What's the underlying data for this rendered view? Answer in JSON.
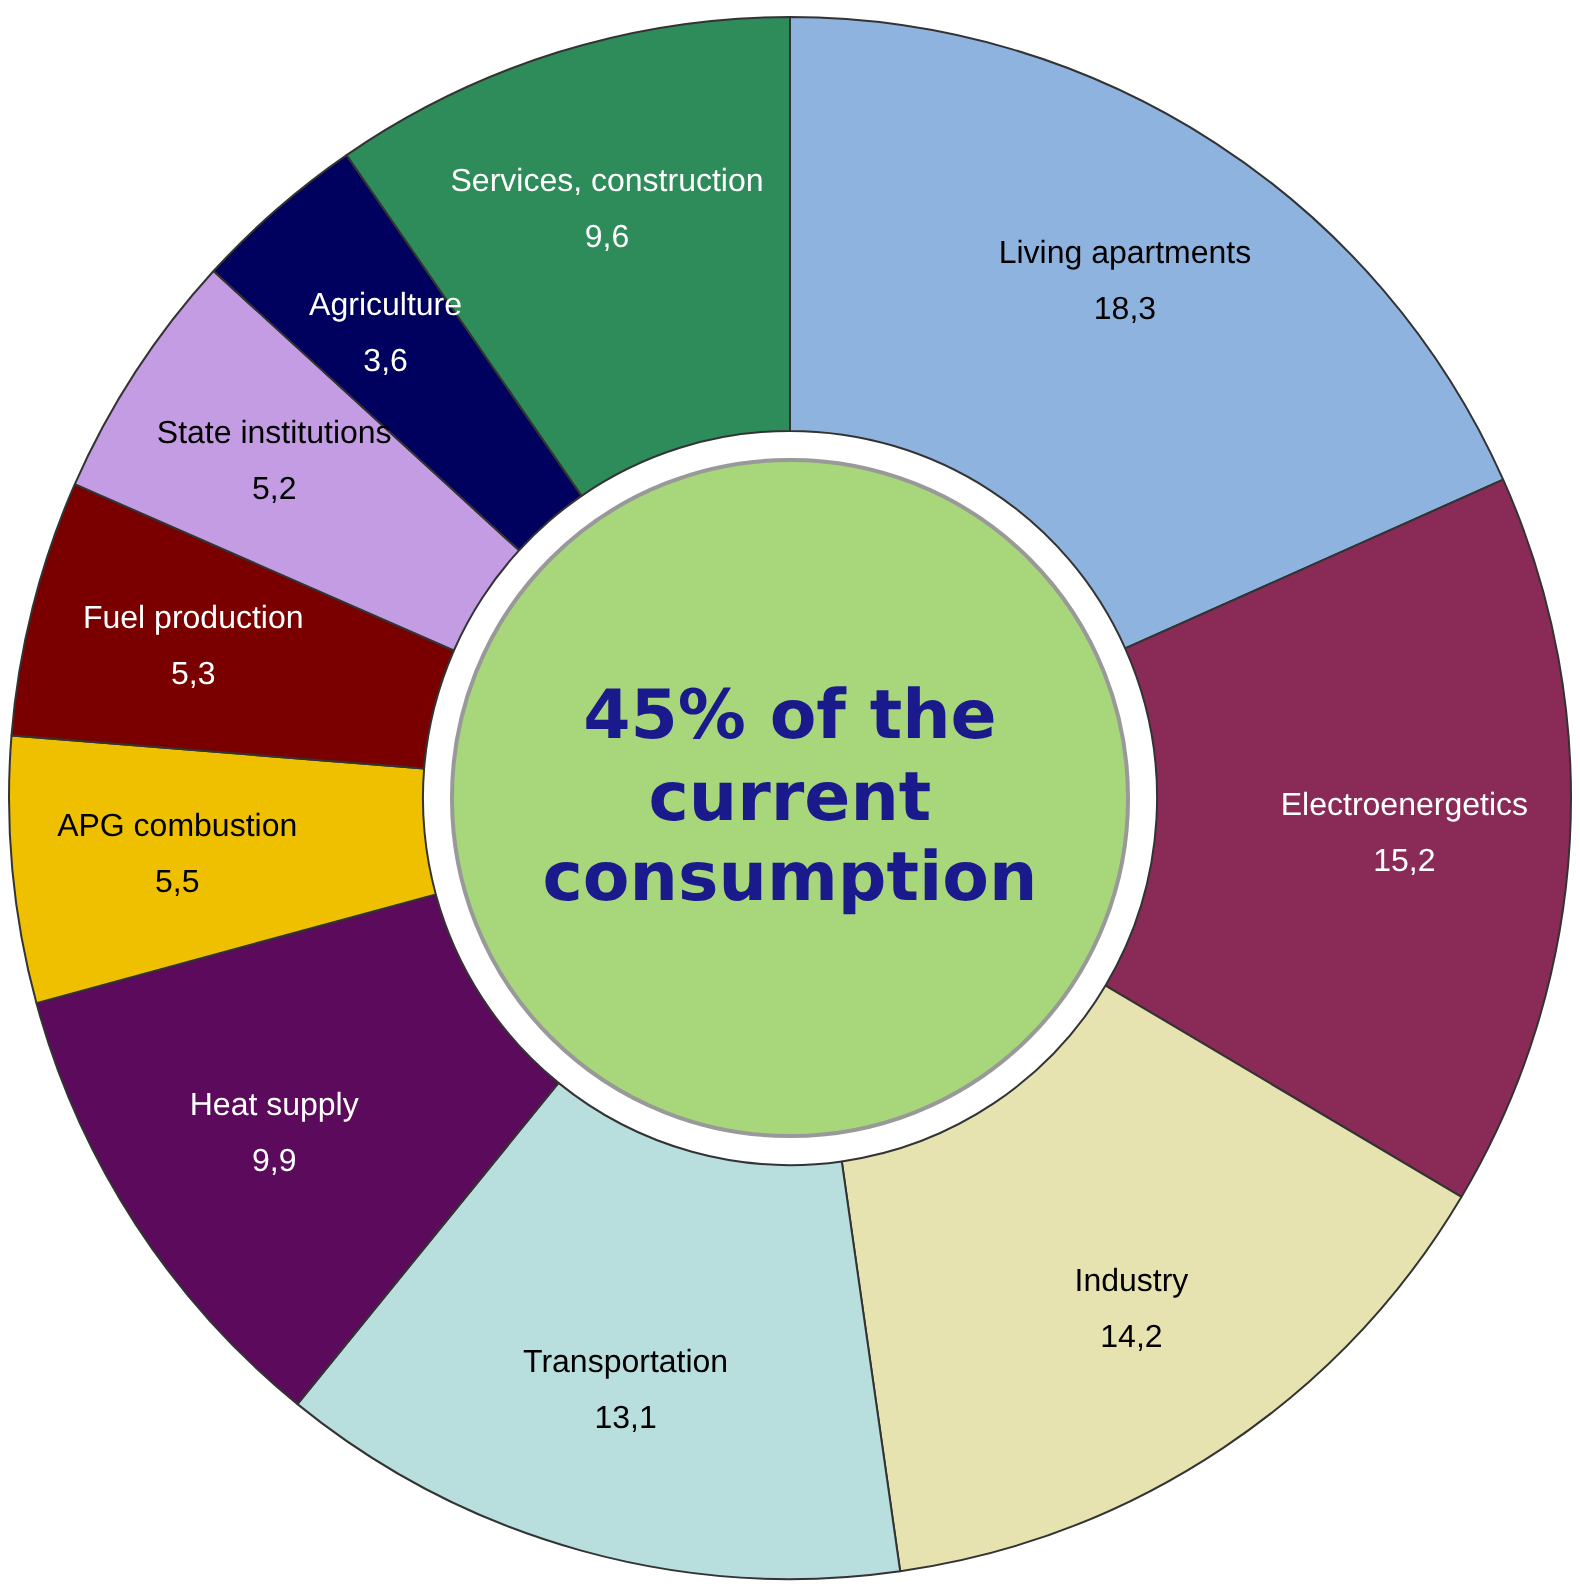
{
  "chart_data": {
    "type": "donut",
    "categories": [
      "Living apartments",
      "Electroenergetics",
      "Industry",
      "Transportation",
      "Heat supply",
      "APG combustion",
      "Fuel production",
      "State institutions",
      "Agriculture",
      "Services, construction"
    ],
    "values": [
      18.3,
      15.2,
      14.2,
      13.1,
      9.9,
      5.5,
      5.3,
      5.2,
      3.6,
      9.6
    ],
    "value_labels": [
      "18,3",
      "15,2",
      "14,2",
      "13,1",
      "9,9",
      "5,5",
      "5,3",
      "5,2",
      "3,6",
      "9,6"
    ],
    "colors": [
      "#8fb3df",
      "#8a2b57",
      "#e6e3b0",
      "#b9dede",
      "#5c0a5c",
      "#eec000",
      "#7a0000",
      "#c49ce4",
      "#00005e",
      "#2e8b5a"
    ],
    "annotations": [
      "45% of the current consumption"
    ],
    "legend": false
  }
}
